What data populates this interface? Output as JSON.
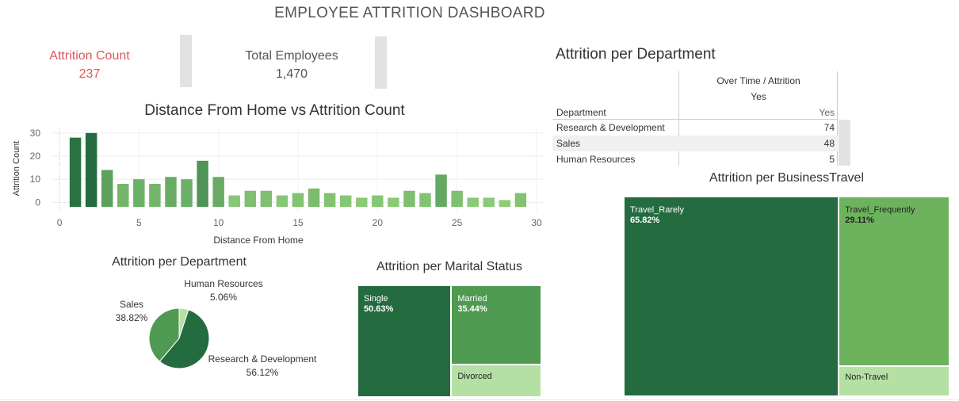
{
  "dashboard": {
    "title": "EMPLOYEE ATTRITION DASHBOARD"
  },
  "kpis": {
    "attrition": {
      "label": "Attrition Count",
      "value": "237"
    },
    "total": {
      "label": "Total Employees",
      "value": "1,470"
    }
  },
  "colors": {
    "dark_green": "#246b3f",
    "mid_green": "#4f9a51",
    "light_green": "#6db35d",
    "pale_green": "#b5e0a4",
    "kpi_red": "#e05757",
    "kpi_gray": "#555555"
  },
  "chart_data": [
    {
      "type": "bar",
      "title": "Distance From Home vs Attrition Count",
      "xlabel": "Distance From Home",
      "ylabel": "Attrition Count",
      "x": [
        1,
        2,
        3,
        4,
        5,
        6,
        7,
        8,
        9,
        10,
        11,
        12,
        13,
        14,
        15,
        16,
        17,
        18,
        19,
        20,
        21,
        22,
        23,
        24,
        25,
        26,
        27,
        28,
        29
      ],
      "values": [
        28,
        30,
        14,
        8,
        10,
        8,
        11,
        10,
        18,
        11,
        3,
        5,
        5,
        3,
        4,
        6,
        4,
        3,
        2,
        3,
        2,
        5,
        4,
        12,
        5,
        2,
        2,
        1,
        4
      ],
      "xticks": [
        "0",
        "5",
        "10",
        "15",
        "20",
        "25",
        "30"
      ],
      "xtick_values": [
        0,
        5,
        10,
        15,
        20,
        25,
        30
      ],
      "yticks": [
        "0",
        "10",
        "20",
        "30"
      ],
      "ytick_values": [
        0,
        10,
        20,
        30
      ],
      "xlim": [
        -0.5,
        30.5
      ],
      "ylim": [
        -4,
        32
      ],
      "grid": true
    },
    {
      "type": "pie",
      "title": "Attrition per Department",
      "slices": [
        {
          "label": "Research & Development",
          "value": 56.12,
          "pct": "56.12%",
          "color": "#246b3f"
        },
        {
          "label": "Sales",
          "value": 38.82,
          "pct": "38.82%",
          "color": "#4f9a51"
        },
        {
          "label": "Human Resources",
          "value": 5.06,
          "pct": "5.06%",
          "color": "#b5e0a4"
        }
      ]
    },
    {
      "type": "treemap",
      "title": "Attrition per Marital Status",
      "items": [
        {
          "label": "Single",
          "pct": "50.63%",
          "color": "#246b3f"
        },
        {
          "label": "Married",
          "pct": "35.44%",
          "color": "#4f9a51"
        },
        {
          "label": "Divorced",
          "pct": "",
          "color": "#b5e0a4"
        }
      ]
    },
    {
      "type": "treemap",
      "title": "Attrition per BusinessTravel",
      "items": [
        {
          "label": "Travel_Rarely",
          "pct": "65.82%",
          "color": "#246b3f"
        },
        {
          "label": "Travel_Frequently",
          "pct": "29.11%",
          "color": "#6db35d"
        },
        {
          "label": "Non-Travel",
          "pct": "",
          "color": "#b5e0a4"
        }
      ]
    },
    {
      "type": "table",
      "title": "Attrition per Department",
      "header_top": "Over Time / Attrition",
      "header_mid": "Yes",
      "row_header": "Department",
      "col_header": "Yes",
      "rows": [
        {
          "label": "Research & Development",
          "value": "74"
        },
        {
          "label": "Sales",
          "value": "48"
        },
        {
          "label": "Human Resources",
          "value": "5"
        }
      ]
    }
  ]
}
